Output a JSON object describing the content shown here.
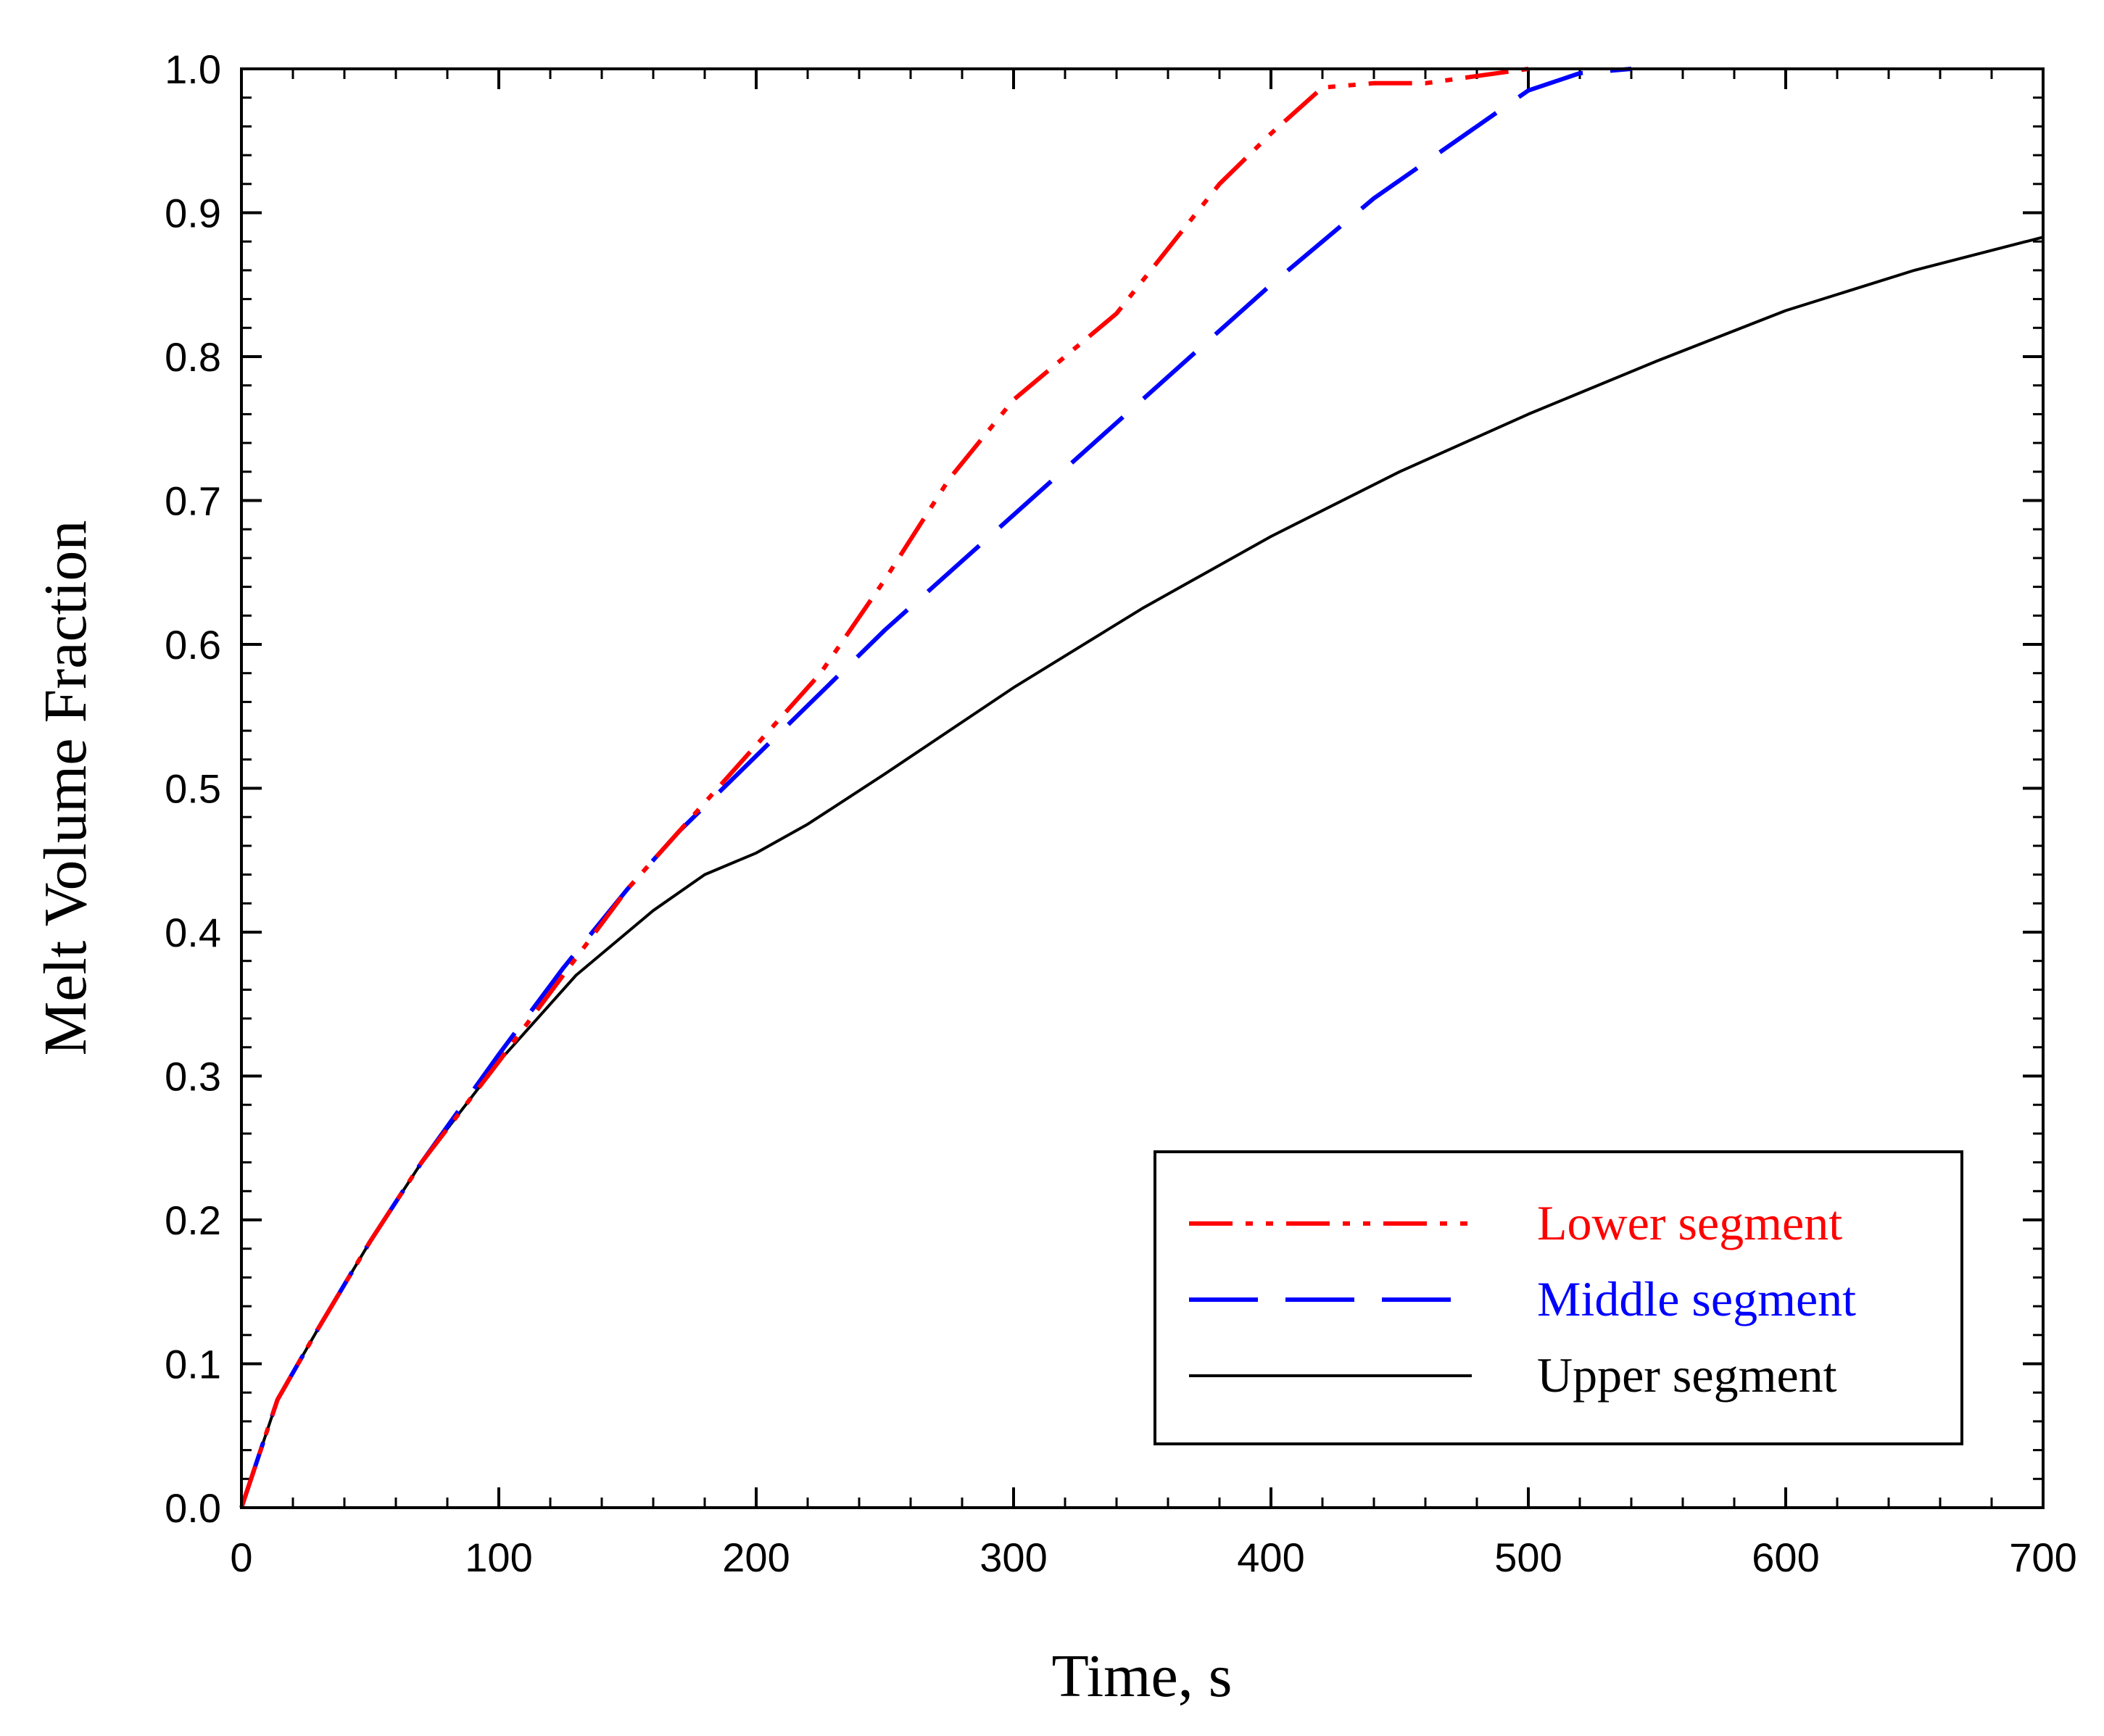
{
  "chart_data": {
    "type": "line",
    "title": "",
    "xlabel": "Time, s",
    "ylabel": "Melt Volume Fraction",
    "xlim": [
      0,
      700
    ],
    "ylim": [
      0.0,
      1.0
    ],
    "x_ticks": [
      0,
      100,
      200,
      300,
      400,
      500,
      600,
      700
    ],
    "x_tick_labels": [
      "0",
      "100",
      "200",
      "300",
      "400",
      "500",
      "600",
      "700"
    ],
    "y_ticks": [
      0.0,
      0.1,
      0.2,
      0.3,
      0.4,
      0.5,
      0.6,
      0.7,
      0.8,
      0.9,
      1.0
    ],
    "y_tick_labels": [
      "0.0",
      "0.1",
      "0.2",
      "0.3",
      "0.4",
      "0.5",
      "0.6",
      "0.7",
      "0.8",
      "0.9",
      "1.0"
    ],
    "x_minor_step": 20,
    "y_minor_step": 0.02,
    "grid": false,
    "legend_position": "bottom-right",
    "series": [
      {
        "name": "Lower segment",
        "color": "#ff0000",
        "style": "dash-dot-dot",
        "x": [
          0,
          14,
          30,
          50,
          70,
          100,
          125,
          150,
          170,
          190,
          210,
          225,
          250,
          275,
          300,
          320,
          340,
          360,
          380,
          400,
          420,
          440,
          460,
          480,
          500
        ],
        "y": [
          0.0,
          0.075,
          0.125,
          0.185,
          0.24,
          0.31,
          0.37,
          0.43,
          0.47,
          0.51,
          0.55,
          0.58,
          0.645,
          0.715,
          0.77,
          0.8,
          0.83,
          0.875,
          0.92,
          0.955,
          0.987,
          0.99,
          0.99,
          0.995,
          1.0
        ]
      },
      {
        "name": "Middle segment",
        "color": "#0000ff",
        "style": "long-dash",
        "x": [
          0,
          14,
          30,
          50,
          70,
          100,
          125,
          150,
          170,
          190,
          210,
          250,
          300,
          350,
          400,
          440,
          480,
          500,
          520,
          540
        ],
        "y": [
          0.0,
          0.075,
          0.125,
          0.185,
          0.24,
          0.315,
          0.375,
          0.43,
          0.47,
          0.505,
          0.54,
          0.61,
          0.69,
          0.77,
          0.85,
          0.91,
          0.96,
          0.985,
          0.997,
          1.0
        ]
      },
      {
        "name": "Upper segment",
        "color": "#000000",
        "style": "solid",
        "x": [
          0,
          14,
          30,
          50,
          70,
          100,
          130,
          160,
          180,
          200,
          220,
          250,
          300,
          350,
          400,
          450,
          500,
          550,
          600,
          650,
          700
        ],
        "y": [
          0.0,
          0.075,
          0.125,
          0.185,
          0.24,
          0.31,
          0.37,
          0.415,
          0.44,
          0.455,
          0.475,
          0.51,
          0.57,
          0.625,
          0.675,
          0.72,
          0.76,
          0.797,
          0.832,
          0.86,
          0.883
        ]
      }
    ]
  }
}
